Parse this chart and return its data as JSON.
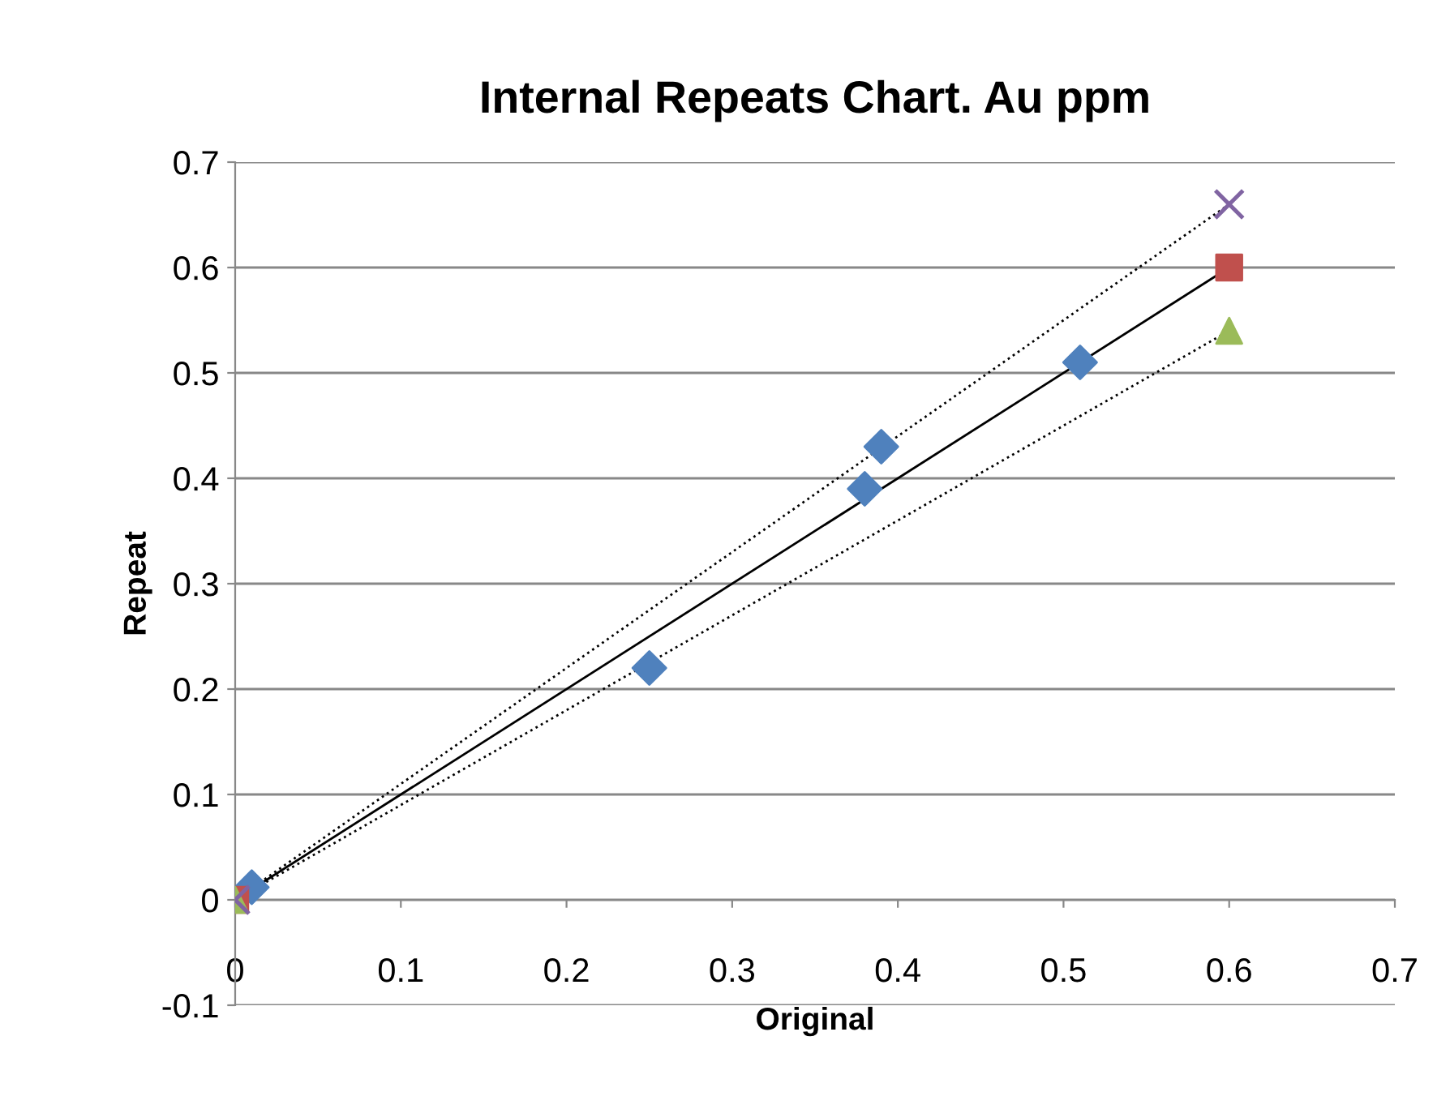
{
  "chart_data": {
    "type": "scatter",
    "title": "Internal Repeats Chart. Au ppm",
    "xlabel": "Original",
    "ylabel": "Repeat",
    "xlim": [
      0,
      0.7
    ],
    "xticks": [
      0,
      0.1,
      0.2,
      0.3,
      0.4,
      0.5,
      0.6,
      0.7
    ],
    "ylim": [
      -0.1,
      0.7
    ],
    "yticks": [
      -0.1,
      0,
      0.1,
      0.2,
      0.3,
      0.4,
      0.5,
      0.6,
      0.7
    ],
    "grid": "y",
    "legend": false,
    "series": [
      {
        "type": "line",
        "color": "#000000",
        "line_style": "solid",
        "marker": "none",
        "x": [
          0,
          0.6
        ],
        "values": [
          0,
          0.6
        ]
      },
      {
        "type": "line",
        "color": "#000000",
        "line_style": "dotted",
        "marker": "none",
        "x": [
          0,
          0.6
        ],
        "values": [
          0,
          0.66
        ]
      },
      {
        "type": "line",
        "color": "#000000",
        "line_style": "dotted",
        "marker": "none",
        "x": [
          0,
          0.6
        ],
        "values": [
          0,
          0.54
        ]
      },
      {
        "color": "#4f81bd",
        "marker": "diamond",
        "x": [
          0.01,
          0.25,
          0.38,
          0.39,
          0.51
        ],
        "values": [
          0.012,
          0.22,
          0.39,
          0.43,
          0.51
        ]
      },
      {
        "color": "#c0504d",
        "marker": "square",
        "x": [
          0,
          0.6
        ],
        "values": [
          0,
          0.6
        ]
      },
      {
        "color": "#9bbb59",
        "marker": "triangle",
        "x": [
          0,
          0.6
        ],
        "values": [
          0,
          0.54
        ]
      },
      {
        "color": "#8064a2",
        "marker": "cross",
        "x": [
          0,
          0.6
        ],
        "values": [
          0,
          0.66
        ]
      }
    ]
  }
}
